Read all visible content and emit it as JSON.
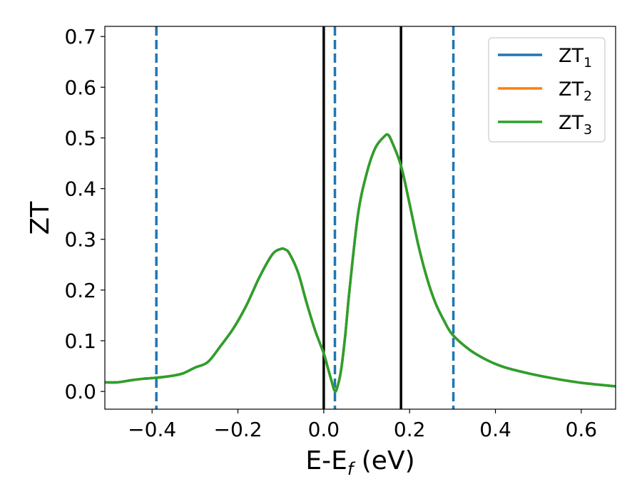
{
  "chart_data": {
    "type": "line",
    "xlabel_main": "E-E",
    "xlabel_sub": "f",
    "xlabel_unit": " (eV)",
    "ylabel": "ZT",
    "xlim": [
      -0.51,
      0.68
    ],
    "ylim": [
      -0.035,
      0.72
    ],
    "xticks": [
      -0.4,
      -0.2,
      0.0,
      0.2,
      0.4,
      0.6
    ],
    "xtick_labels": [
      "−0.4",
      "−0.2",
      "0.0",
      "0.2",
      "0.4",
      "0.6"
    ],
    "yticks": [
      0.0,
      0.1,
      0.2,
      0.3,
      0.4,
      0.5,
      0.6,
      0.7
    ],
    "ytick_labels": [
      "0.0",
      "0.1",
      "0.2",
      "0.3",
      "0.4",
      "0.5",
      "0.6",
      "0.7"
    ],
    "legend_position": "top-right",
    "grid": false,
    "series": [
      {
        "name": "ZT1",
        "label_main": "ZT",
        "label_sub": "1",
        "color": "#1f77b4",
        "x": [
          -0.51,
          -0.48,
          -0.45,
          -0.42,
          -0.39,
          -0.36,
          -0.33,
          -0.3,
          -0.27,
          -0.24,
          -0.21,
          -0.18,
          -0.15,
          -0.12,
          -0.1,
          -0.09,
          -0.08,
          -0.06,
          -0.04,
          -0.02,
          0.0,
          0.01,
          0.02,
          0.025,
          0.03,
          0.04,
          0.05,
          0.06,
          0.08,
          0.1,
          0.12,
          0.14,
          0.15,
          0.16,
          0.18,
          0.2,
          0.22,
          0.24,
          0.26,
          0.28,
          0.3,
          0.34,
          0.38,
          0.42,
          0.48,
          0.54,
          0.6,
          0.68
        ],
        "y": [
          0.018,
          0.018,
          0.022,
          0.025,
          0.027,
          0.03,
          0.035,
          0.047,
          0.058,
          0.09,
          0.125,
          0.17,
          0.225,
          0.27,
          0.281,
          0.28,
          0.272,
          0.235,
          0.175,
          0.12,
          0.075,
          0.045,
          0.015,
          0.002,
          0.004,
          0.04,
          0.11,
          0.2,
          0.35,
          0.43,
          0.48,
          0.502,
          0.506,
          0.49,
          0.445,
          0.37,
          0.29,
          0.225,
          0.175,
          0.14,
          0.112,
          0.082,
          0.062,
          0.048,
          0.035,
          0.025,
          0.017,
          0.01
        ]
      },
      {
        "name": "ZT2",
        "label_main": "ZT",
        "label_sub": "2",
        "color": "#ff7f0e",
        "x": [
          -0.51,
          -0.48,
          -0.45,
          -0.42,
          -0.39,
          -0.36,
          -0.33,
          -0.3,
          -0.27,
          -0.24,
          -0.21,
          -0.18,
          -0.15,
          -0.12,
          -0.1,
          -0.09,
          -0.08,
          -0.06,
          -0.04,
          -0.02,
          0.0,
          0.01,
          0.02,
          0.025,
          0.03,
          0.04,
          0.05,
          0.06,
          0.08,
          0.1,
          0.12,
          0.14,
          0.15,
          0.16,
          0.18,
          0.2,
          0.22,
          0.24,
          0.26,
          0.28,
          0.3,
          0.34,
          0.38,
          0.42,
          0.48,
          0.54,
          0.6,
          0.68
        ],
        "y": [
          0.018,
          0.018,
          0.022,
          0.025,
          0.027,
          0.03,
          0.035,
          0.047,
          0.058,
          0.09,
          0.125,
          0.17,
          0.225,
          0.27,
          0.281,
          0.28,
          0.272,
          0.235,
          0.175,
          0.12,
          0.075,
          0.045,
          0.015,
          0.002,
          0.004,
          0.04,
          0.11,
          0.2,
          0.35,
          0.43,
          0.48,
          0.502,
          0.506,
          0.49,
          0.445,
          0.37,
          0.29,
          0.225,
          0.175,
          0.14,
          0.112,
          0.082,
          0.062,
          0.048,
          0.035,
          0.025,
          0.017,
          0.01
        ]
      },
      {
        "name": "ZT3",
        "label_main": "ZT",
        "label_sub": "3",
        "color": "#2ca02c",
        "x": [
          -0.51,
          -0.48,
          -0.45,
          -0.42,
          -0.39,
          -0.36,
          -0.33,
          -0.3,
          -0.27,
          -0.24,
          -0.21,
          -0.18,
          -0.15,
          -0.12,
          -0.1,
          -0.09,
          -0.08,
          -0.06,
          -0.04,
          -0.02,
          0.0,
          0.01,
          0.02,
          0.025,
          0.03,
          0.04,
          0.05,
          0.06,
          0.08,
          0.1,
          0.12,
          0.14,
          0.15,
          0.16,
          0.18,
          0.2,
          0.22,
          0.24,
          0.26,
          0.28,
          0.3,
          0.34,
          0.38,
          0.42,
          0.48,
          0.54,
          0.6,
          0.68
        ],
        "y": [
          0.018,
          0.018,
          0.022,
          0.025,
          0.027,
          0.03,
          0.035,
          0.047,
          0.058,
          0.09,
          0.125,
          0.17,
          0.225,
          0.27,
          0.281,
          0.28,
          0.272,
          0.235,
          0.175,
          0.12,
          0.075,
          0.045,
          0.015,
          0.002,
          0.004,
          0.04,
          0.11,
          0.2,
          0.35,
          0.43,
          0.48,
          0.502,
          0.506,
          0.49,
          0.445,
          0.37,
          0.29,
          0.225,
          0.175,
          0.14,
          0.112,
          0.082,
          0.062,
          0.048,
          0.035,
          0.025,
          0.017,
          0.01
        ]
      }
    ],
    "vlines": [
      {
        "x": -0.39,
        "style": "dashed",
        "color": "#1f77b4"
      },
      {
        "x": 0.026,
        "style": "dashed",
        "color": "#1f77b4"
      },
      {
        "x": 0.302,
        "style": "dashed",
        "color": "#1f77b4"
      },
      {
        "x": 0.0,
        "style": "solid",
        "color": "#000000"
      },
      {
        "x": 0.18,
        "style": "solid",
        "color": "#000000"
      }
    ]
  }
}
